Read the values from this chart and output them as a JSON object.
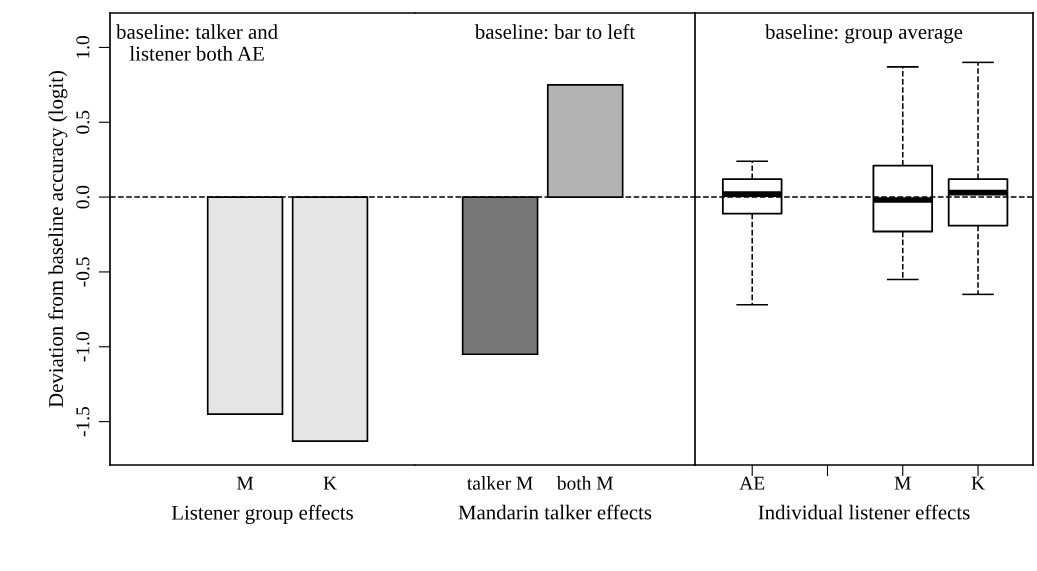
{
  "chart_data": [
    {
      "type": "bar",
      "title": "baseline: talker and\nlistener both AE",
      "xlabel": "Listener group effects",
      "ylabel": "Deviation from baseline accuracy (logit)",
      "categories": [
        "M",
        "K"
      ],
      "values": [
        -1.45,
        -1.63
      ],
      "colors": [
        "#e6e6e6",
        "#e6e6e6"
      ],
      "ylim": [
        -1.79,
        1.23
      ],
      "yticks": [
        -1.5,
        {
          "value": -1.0,
          "label": "-1.0"
        },
        -0.5,
        {
          "value": 0.0,
          "label": "0.0"
        },
        0.5,
        {
          "value": 1.0,
          "label": "1.0"
        }
      ],
      "ref_lines": [
        {
          "axis": "y",
          "value": 0,
          "line_style": "dashed",
          "color": "#000000"
        }
      ]
    },
    {
      "type": "bar",
      "title": "baseline: bar to left",
      "xlabel": "Mandarin talker effects",
      "categories": [
        "talker M",
        "both M"
      ],
      "values": [
        -1.05,
        0.75
      ],
      "colors": [
        "#777777",
        "#b3b3b3"
      ],
      "ylim": [
        -1.79,
        1.23
      ],
      "yticks": [
        -1.5,
        -1.0,
        -0.5,
        0.0,
        0.5,
        1.0
      ],
      "tick_labels": "x",
      "ref_lines": [
        {
          "axis": "y",
          "value": 0,
          "line_style": "dashed",
          "color": "#000000"
        }
      ]
    },
    {
      "type": "box",
      "title": "baseline: group average",
      "xlabel": "Individual listener effects",
      "categories": [
        "AE",
        null,
        "M",
        "K"
      ],
      "boxes": [
        {
          "low": -0.72,
          "q1": -0.11,
          "median": 0.02,
          "q3": 0.12,
          "high": 0.24
        },
        null,
        {
          "low": -0.55,
          "q1": -0.23,
          "median": -0.02,
          "q3": 0.21,
          "high": 0.87
        },
        {
          "low": -0.65,
          "q1": -0.19,
          "median": 0.03,
          "q3": 0.12,
          "high": 0.9
        }
      ],
      "ylim": [
        -1.79,
        1.23
      ],
      "yticks": [
        -1.5,
        -1.0,
        -0.5,
        0.0,
        0.5,
        1.0
      ],
      "tick_labels": "x",
      "ref_lines": [
        {
          "axis": "y",
          "value": 0,
          "line_style": "dashed",
          "color": "#000000"
        }
      ]
    }
  ]
}
